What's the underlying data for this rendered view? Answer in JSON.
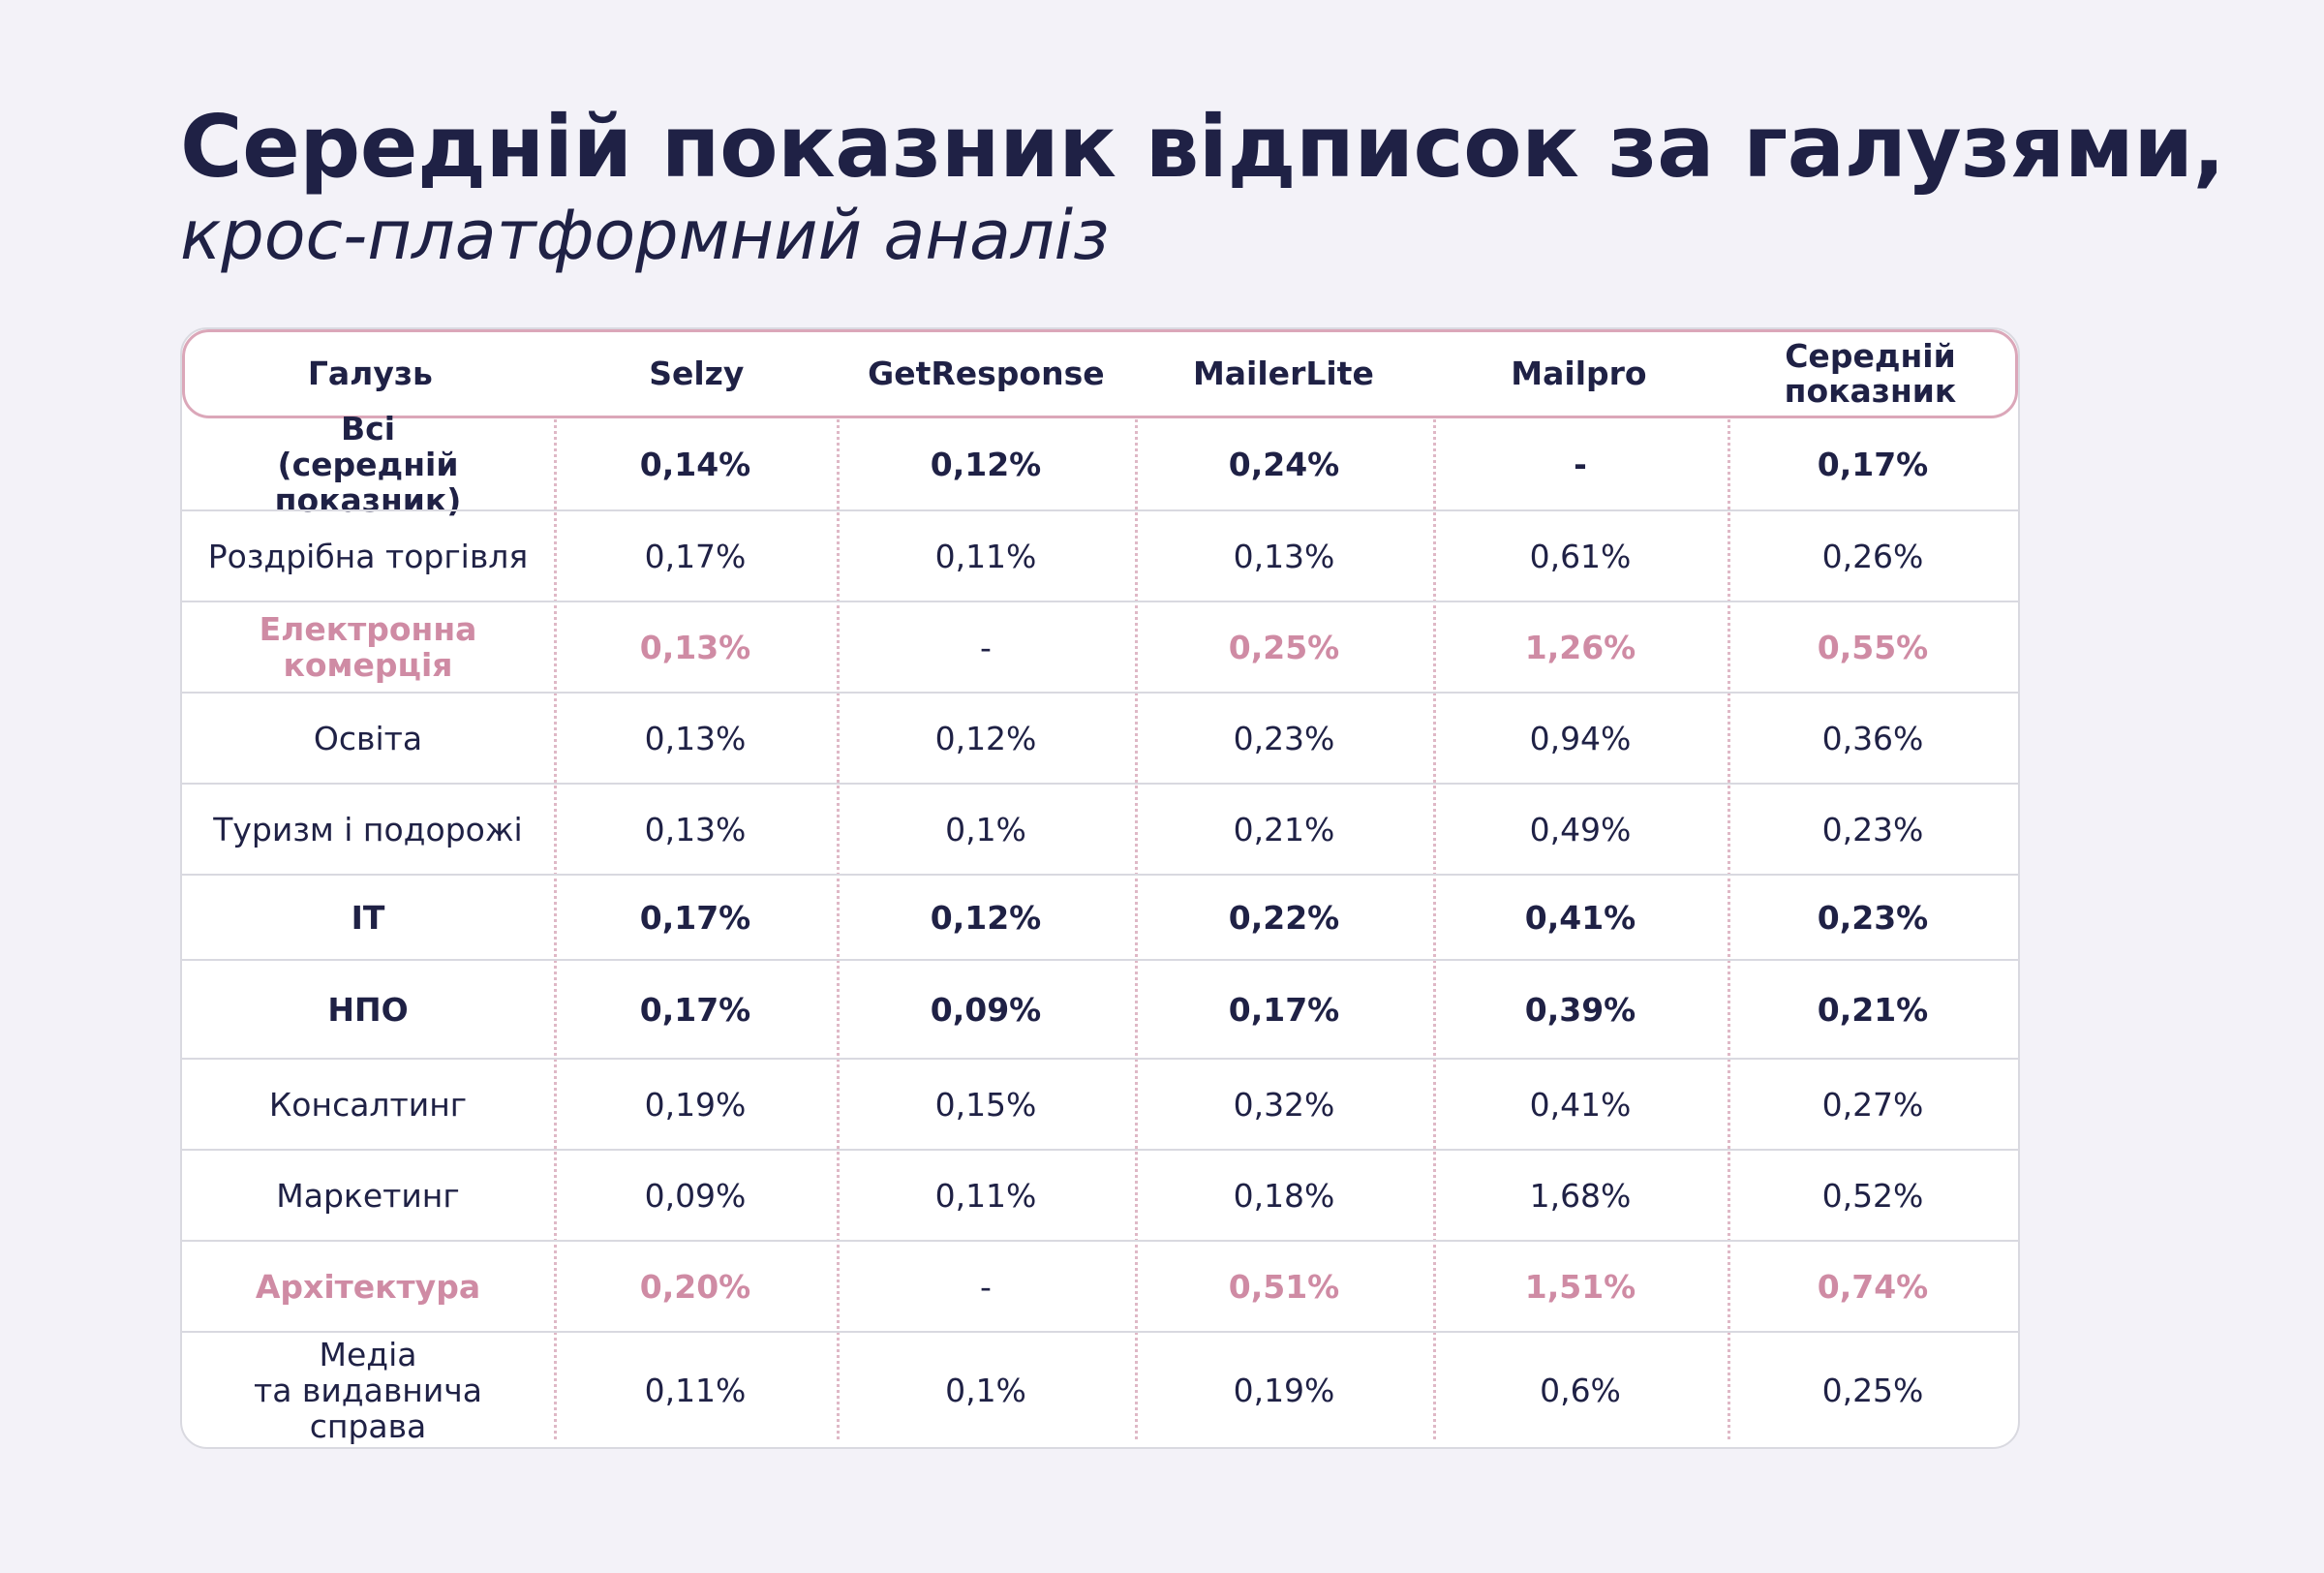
{
  "title": "Середній показник відписок за галузями,",
  "subtitle": "крос-платформний аналіз",
  "colors": {
    "text": "#1f2145",
    "accent_pink": "#cf8ba4",
    "header_border": "#dba7b9",
    "background": "#f3f2f8"
  },
  "table": {
    "headers": [
      "Галузь",
      "Selzy",
      "GetResponse",
      "MailerLite",
      "Mailpro",
      "Середній\nпоказник"
    ],
    "rows": [
      {
        "style": "bold",
        "cells": [
          "Всі\n(середній показник)",
          "0,14%",
          "0,12%",
          "0,24%",
          "-",
          "0,17%"
        ]
      },
      {
        "style": "normal",
        "cells": [
          "Роздрібна торгівля",
          "0,17%",
          "0,11%",
          "0,13%",
          "0,61%",
          "0,26%"
        ]
      },
      {
        "style": "pink",
        "cells": [
          "Електронна комерція",
          "0,13%",
          "-",
          "0,25%",
          "1,26%",
          "0,55%"
        ]
      },
      {
        "style": "normal",
        "cells": [
          "Освіта",
          "0,13%",
          "0,12%",
          "0,23%",
          "0,94%",
          "0,36%"
        ]
      },
      {
        "style": "normal",
        "cells": [
          "Туризм і подорожі",
          "0,13%",
          "0,1%",
          "0,21%",
          "0,49%",
          "0,23%"
        ]
      },
      {
        "style": "bold",
        "cells": [
          "IT",
          "0,17%",
          "0,12%",
          "0,22%",
          "0,41%",
          "0,23%"
        ]
      },
      {
        "style": "bold",
        "cells": [
          "НПО",
          "0,17%",
          "0,09%",
          "0,17%",
          "0,39%",
          "0,21%"
        ]
      },
      {
        "style": "normal",
        "cells": [
          "Консалтинг",
          "0,19%",
          "0,15%",
          "0,32%",
          "0,41%",
          "0,27%"
        ]
      },
      {
        "style": "normal",
        "cells": [
          "Маркетинг",
          "0,09%",
          "0,11%",
          "0,18%",
          "1,68%",
          "0,52%"
        ]
      },
      {
        "style": "pink",
        "cells": [
          "Архітектура",
          "0,20%",
          "-",
          "0,51%",
          "1,51%",
          "0,74%"
        ]
      },
      {
        "style": "normal",
        "cells": [
          "Медіа\nта видавнича\nсправа",
          "0,11%",
          "0,1%",
          "0,19%",
          "0,6%",
          "0,25%"
        ]
      }
    ]
  }
}
